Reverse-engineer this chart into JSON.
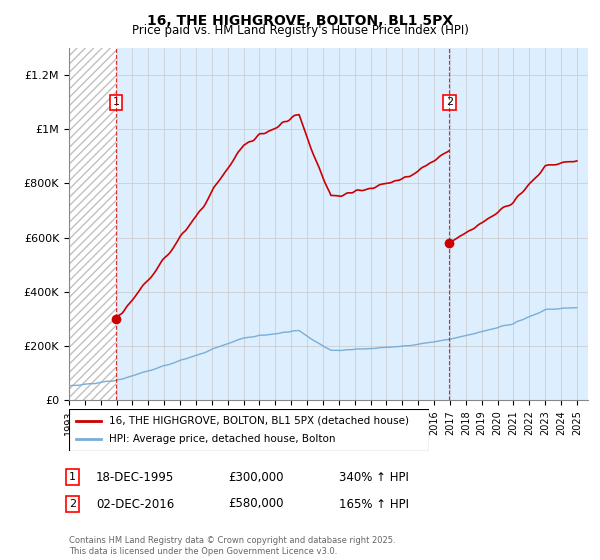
{
  "title": "16, THE HIGHGROVE, BOLTON, BL1 5PX",
  "subtitle": "Price paid vs. HM Land Registry's House Price Index (HPI)",
  "sale1_price": 300000,
  "sale2_price": 580000,
  "hpi_line_color": "#7aaed6",
  "price_line_color": "#cc0000",
  "background_color": "#ffffff",
  "chart_bg_color": "#ddeeff",
  "hatch_bg_color": "#e8e8e8",
  "ylim": [
    0,
    1300000
  ],
  "xlim_start": 1993.0,
  "xlim_end": 2025.7,
  "legend_label_red": "16, THE HIGHGROVE, BOLTON, BL1 5PX (detached house)",
  "legend_label_blue": "HPI: Average price, detached house, Bolton",
  "footer": "Contains HM Land Registry data © Crown copyright and database right 2025.\nThis data is licensed under the Open Government Licence v3.0.",
  "yticks": [
    0,
    200000,
    400000,
    600000,
    800000,
    1000000,
    1200000
  ],
  "ytick_labels": [
    "£0",
    "£200K",
    "£400K",
    "£600K",
    "£800K",
    "£1M",
    "£1.2M"
  ]
}
